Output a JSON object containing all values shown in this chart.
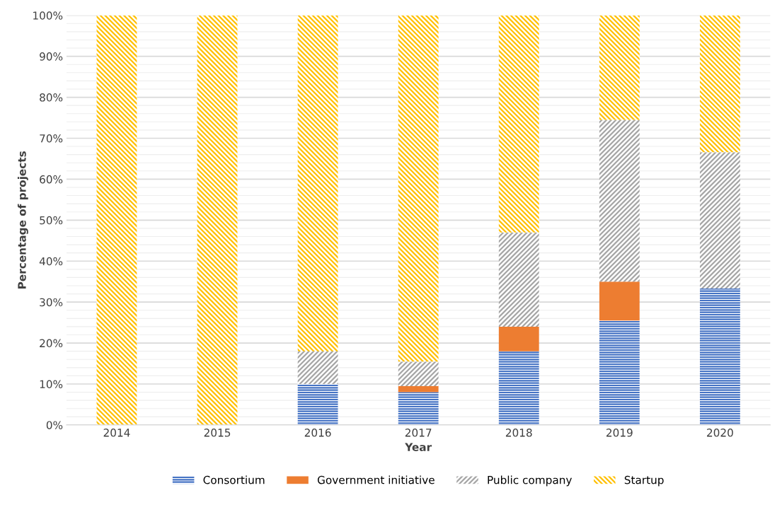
{
  "chart_data": {
    "type": "bar",
    "stacked": true,
    "xlabel": "Year",
    "ylabel": "Percentage of projects",
    "categories": [
      "2014",
      "2015",
      "2016",
      "2017",
      "2018",
      "2019",
      "2020"
    ],
    "series": [
      {
        "name": "Consortium",
        "color": "#4472c4",
        "values": [
          0,
          0,
          10,
          8,
          18,
          25.5,
          33.3
        ]
      },
      {
        "name": "Government initiative",
        "color": "#ed7d31",
        "values": [
          0,
          0,
          0,
          1.5,
          6,
          9.5,
          0
        ]
      },
      {
        "name": "Public company",
        "color": "#a5a5a5",
        "values": [
          0,
          0,
          8,
          6,
          23,
          39.5,
          33.3
        ]
      },
      {
        "name": "Startup",
        "color": "#ffc000",
        "values": [
          100,
          100,
          82,
          84.5,
          53,
          25.5,
          33.4
        ]
      }
    ],
    "ylim": [
      0,
      100
    ],
    "yticks": [
      {
        "value": 0,
        "label": "0%"
      },
      {
        "value": 10,
        "label": "10%"
      },
      {
        "value": 20,
        "label": "20%"
      },
      {
        "value": 30,
        "label": "30%"
      },
      {
        "value": 40,
        "label": "40%"
      },
      {
        "value": 50,
        "label": "50%"
      },
      {
        "value": 60,
        "label": "60%"
      },
      {
        "value": 70,
        "label": "70%"
      },
      {
        "value": 80,
        "label": "80%"
      },
      {
        "value": 90,
        "label": "90%"
      },
      {
        "value": 100,
        "label": "100%"
      }
    ],
    "grid": "y",
    "legend": "bottom"
  }
}
